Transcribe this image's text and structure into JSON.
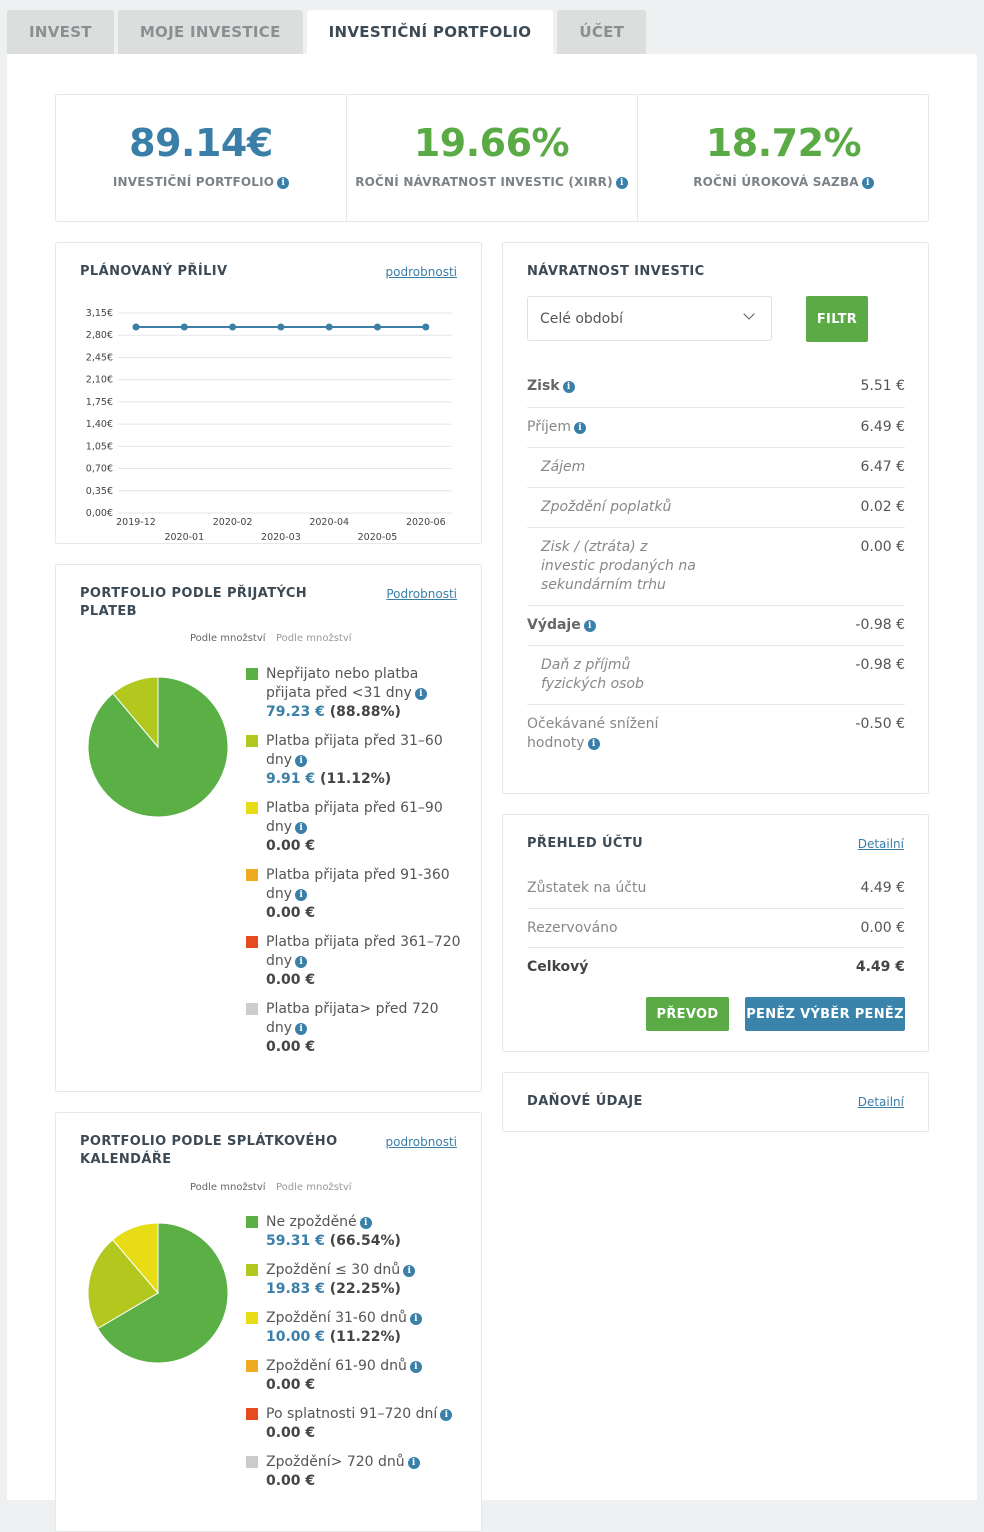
{
  "tabs": [
    {
      "label": "INVEST"
    },
    {
      "label": "MOJE INVESTICE"
    },
    {
      "label": "INVESTIČNÍ PORTFOLIO",
      "active": true
    },
    {
      "label": "ÚČET"
    }
  ],
  "stats": [
    {
      "value": "89.14€",
      "label": "INVESTIČNÍ PORTFOLIO",
      "color": "#3a7fa8"
    },
    {
      "value": "19.66%",
      "label": "ROČNÍ NÁVRATNOST INVESTIC (XIRR)",
      "color": "#5aaa45"
    },
    {
      "value": "18.72%",
      "label": "ROČNÍ ÚROKOVÁ SAZBA",
      "color": "#5aaa45"
    }
  ],
  "inflow": {
    "title": "PLÁNOVANÝ PŘÍLIV",
    "link": "podrobnosti"
  },
  "chart_data": {
    "type": "line",
    "x": [
      "2019-12",
      "2020-01",
      "2020-02",
      "2020-03",
      "2020-04",
      "2020-05",
      "2020-06"
    ],
    "series": [
      {
        "values": [
          2.93,
          2.93,
          2.93,
          2.93,
          2.93,
          2.93,
          2.93
        ]
      }
    ],
    "y_ticks": [
      "3,15€",
      "2,80€",
      "2,45€",
      "2,10€",
      "1,75€",
      "1,40€",
      "1,05€",
      "0,70€",
      "0,35€",
      "0,00€"
    ],
    "ylim": [
      0,
      3.15
    ],
    "color": "#3a7fa8",
    "grid": true
  },
  "payments": {
    "title_line1": "PORTFOLIO PODLE PŘIJATÝCH",
    "title_line2": "PLATEB",
    "link": "Podrobnosti",
    "toggle_active": "Podle množství",
    "toggle_inactive": "Podle množství",
    "items": [
      {
        "label": "Nepřijato nebo platba přijata před <31 dny",
        "amount": "79.23 €",
        "pct": "(88.88%)",
        "color": "#5aaf45",
        "value": 88.88
      },
      {
        "label": "Platba přijata před 31–60 dny",
        "amount": "9.91 €",
        "pct": "(11.12%)",
        "color": "#b2c81e",
        "value": 11.12
      },
      {
        "label": "Platba přijata před 61–90 dny",
        "amount": "0.00 €",
        "pct": "",
        "color": "#e8dc14",
        "value": 0
      },
      {
        "label": "Platba přijata před 91-360 dny",
        "amount": "0.00 €",
        "pct": "",
        "color": "#f0aa20",
        "value": 0
      },
      {
        "label": "Platba přijata před 361–720 dny",
        "amount": "0.00 €",
        "pct": "",
        "color": "#e64a1e",
        "value": 0
      },
      {
        "label": "Platba přijata> před 720 dny",
        "amount": "0.00 €",
        "pct": "",
        "color": "#cccccc",
        "value": 0
      }
    ]
  },
  "schedule": {
    "title_line1": "PORTFOLIO PODLE SPLÁTKOVÉHO",
    "title_line2": "KALENDÁŘE",
    "link": "podrobnosti",
    "toggle_active": "Podle množství",
    "toggle_inactive": "Podle množství",
    "items": [
      {
        "label": "Ne zpožděné",
        "amount": "59.31 €",
        "pct": "(66.54%)",
        "color": "#5aaf45",
        "value": 66.54
      },
      {
        "label": "Zpoždění ≤ 30 dnů",
        "amount": "19.83 €",
        "pct": "(22.25%)",
        "color": "#b2c81e",
        "value": 22.25
      },
      {
        "label": "Zpoždění 31-60 dnů",
        "amount": "10.00 €",
        "pct": "(11.22%)",
        "color": "#e8dc14",
        "value": 11.22
      },
      {
        "label": "Zpoždění 61-90 dnů",
        "amount": "0.00 €",
        "pct": "",
        "color": "#f0aa20",
        "value": 0
      },
      {
        "label": "Po splatnosti 91–720 dní",
        "amount": "0.00 €",
        "pct": "",
        "color": "#e64a1e",
        "value": 0
      },
      {
        "label": "Zpoždění> 720 dnů",
        "amount": "0.00 €",
        "pct": "",
        "color": "#cccccc",
        "value": 0
      }
    ]
  },
  "returns": {
    "title": "NÁVRATNOST INVESTIC",
    "period": "Celé období",
    "filter": "FILTR",
    "rows": [
      {
        "label": "Zisk",
        "value": "5.51 €",
        "info": true,
        "bold": true
      },
      {
        "label": "Příjem",
        "value": "6.49 €",
        "info": true
      },
      {
        "label": "Zájem",
        "value": "6.47 €",
        "indent": true
      },
      {
        "label": "Zpoždění poplatků",
        "value": "0.02 €",
        "indent": true
      },
      {
        "label": "Zisk / (ztráta) z investic prodaných na sekundárním trhu",
        "value": "0.00 €",
        "indent": true
      },
      {
        "label": "Výdaje",
        "value": "-0.98 €",
        "info": true,
        "bold": true
      },
      {
        "label": "Daň z příjmů fyzických osob",
        "value": "-0.98 €",
        "indent": true
      },
      {
        "label": "Očekávané snížení hodnoty",
        "value": "-0.50 €",
        "info": true
      }
    ]
  },
  "account": {
    "title": "PŘEHLED ÚČTU",
    "link": "Detailní",
    "rows": [
      {
        "label": "Zůstatek na účtu",
        "value": "4.49 €"
      },
      {
        "label": "Rezervováno",
        "value": "0.00 €"
      },
      {
        "label": "Celkový",
        "value": "4.49 €"
      }
    ],
    "transfer": "PŘEVOD",
    "withdraw": "PENĚZ VÝBĚR PENĚZ"
  },
  "tax": {
    "title": "DAŇOVÉ ÚDAJE",
    "link": "Detailní"
  },
  "colors": {
    "blue": "#3a7fa8",
    "green": "#5aaa45"
  }
}
